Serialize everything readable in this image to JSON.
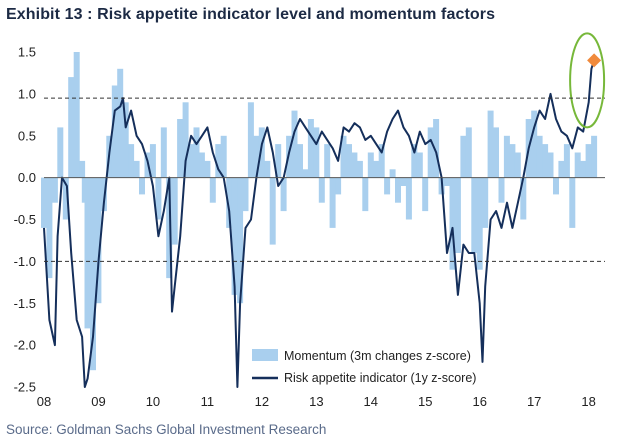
{
  "header": {
    "title": "Exhibit 13 : Risk appetite indicator level and momentum factors"
  },
  "footer": {
    "source": "Source: Goldman Sachs Global Investment Research"
  },
  "chart_data": {
    "type": "line",
    "title": "Exhibit 13 : Risk appetite indicator level and momentum factors",
    "xlabel": "",
    "ylabel": "",
    "x_range": [
      2008.0,
      2018.3
    ],
    "ylim": [
      -2.5,
      1.5
    ],
    "x_tick_labels": [
      "08",
      "09",
      "10",
      "11",
      "12",
      "13",
      "14",
      "15",
      "16",
      "17",
      "18"
    ],
    "y_tick_values": [
      1.5,
      1.0,
      0.5,
      0.0,
      -0.5,
      -1.0,
      -1.5,
      -2.0,
      -2.5
    ],
    "y_tick_labels": [
      "1.5",
      "1.0",
      "0.5",
      "0.0",
      "-0.5",
      "-1.0",
      "-1.5",
      "-2.0",
      "-2.5"
    ],
    "reference_lines": [
      0.95,
      -1.0
    ],
    "colors": {
      "momentum": "#a9cfee",
      "risk": "#152f5b",
      "marker": "#f08a3c",
      "ellipse": "#77b83a",
      "ref": "#333333"
    },
    "series": [
      {
        "name": "Momentum (3m changes z-score)",
        "kind": "area",
        "x": [
          2008.0,
          2008.1,
          2008.2,
          2008.3,
          2008.4,
          2008.5,
          2008.6,
          2008.7,
          2008.75,
          2008.8,
          2008.9,
          2009.0,
          2009.1,
          2009.2,
          2009.3,
          2009.4,
          2009.5,
          2009.6,
          2009.7,
          2009.8,
          2009.9,
          2010.0,
          2010.1,
          2010.2,
          2010.3,
          2010.4,
          2010.5,
          2010.6,
          2010.7,
          2010.8,
          2010.9,
          2011.0,
          2011.1,
          2011.2,
          2011.3,
          2011.4,
          2011.5,
          2011.6,
          2011.7,
          2011.8,
          2011.9,
          2012.0,
          2012.1,
          2012.2,
          2012.3,
          2012.4,
          2012.5,
          2012.6,
          2012.7,
          2012.8,
          2012.9,
          2013.0,
          2013.1,
          2013.2,
          2013.3,
          2013.4,
          2013.5,
          2013.6,
          2013.7,
          2013.8,
          2013.9,
          2014.0,
          2014.1,
          2014.2,
          2014.3,
          2014.4,
          2014.5,
          2014.6,
          2014.7,
          2014.8,
          2014.9,
          2015.0,
          2015.1,
          2015.2,
          2015.3,
          2015.4,
          2015.5,
          2015.6,
          2015.7,
          2015.8,
          2015.9,
          2016.0,
          2016.1,
          2016.2,
          2016.3,
          2016.4,
          2016.5,
          2016.6,
          2016.7,
          2016.8,
          2016.9,
          2017.0,
          2017.1,
          2017.2,
          2017.3,
          2017.4,
          2017.5,
          2017.6,
          2017.7,
          2017.8,
          2017.9,
          2018.0,
          2018.1
        ],
        "values": [
          -0.6,
          -1.2,
          -0.3,
          0.6,
          -0.5,
          1.2,
          1.5,
          0.2,
          -0.3,
          -1.8,
          -2.3,
          -1.5,
          -0.4,
          0.5,
          1.1,
          1.3,
          0.9,
          0.4,
          0.2,
          -0.2,
          0.3,
          0.4,
          -0.5,
          0.6,
          -1.2,
          -0.8,
          0.7,
          0.9,
          0.4,
          0.6,
          0.3,
          0.2,
          -0.3,
          0.4,
          0.5,
          -0.6,
          -1.4,
          -1.5,
          -0.4,
          0.9,
          0.5,
          0.6,
          0.2,
          -0.8,
          0.4,
          -0.4,
          0.5,
          0.8,
          0.4,
          0.1,
          0.7,
          0.6,
          -0.3,
          0.4,
          -0.6,
          -0.2,
          0.5,
          0.4,
          0.3,
          0.2,
          -0.4,
          0.3,
          0.2,
          0.4,
          -0.2,
          0.1,
          -0.3,
          -0.1,
          -0.5,
          0.4,
          0.3,
          -0.4,
          0.6,
          0.7,
          -0.2,
          -0.1,
          -1.1,
          -0.9,
          0.5,
          0.6,
          -0.9,
          -1.1,
          -0.6,
          0.8,
          0.6,
          -0.3,
          0.5,
          0.4,
          0.3,
          -0.5,
          0.7,
          0.8,
          0.5,
          0.4,
          0.3,
          -0.2,
          0.2,
          0.4,
          -0.6,
          0.3,
          0.2,
          0.4,
          0.5
        ]
      },
      {
        "name": "Risk appetite indicator (1y z-score)",
        "kind": "line",
        "x": [
          2008.0,
          2008.1,
          2008.2,
          2008.25,
          2008.33,
          2008.42,
          2008.5,
          2008.6,
          2008.7,
          2008.75,
          2008.8,
          2008.9,
          2009.0,
          2009.1,
          2009.2,
          2009.3,
          2009.4,
          2009.45,
          2009.5,
          2009.6,
          2009.7,
          2009.8,
          2009.9,
          2010.0,
          2010.1,
          2010.2,
          2010.3,
          2010.35,
          2010.4,
          2010.5,
          2010.6,
          2010.7,
          2010.8,
          2010.9,
          2011.0,
          2011.1,
          2011.2,
          2011.3,
          2011.4,
          2011.5,
          2011.55,
          2011.6,
          2011.7,
          2011.8,
          2011.9,
          2012.0,
          2012.1,
          2012.2,
          2012.3,
          2012.4,
          2012.5,
          2012.6,
          2012.7,
          2012.8,
          2012.9,
          2013.0,
          2013.1,
          2013.2,
          2013.3,
          2013.4,
          2013.5,
          2013.6,
          2013.7,
          2013.8,
          2013.9,
          2014.0,
          2014.1,
          2014.2,
          2014.3,
          2014.4,
          2014.5,
          2014.6,
          2014.7,
          2014.8,
          2014.9,
          2015.0,
          2015.1,
          2015.2,
          2015.3,
          2015.4,
          2015.5,
          2015.6,
          2015.7,
          2015.8,
          2015.9,
          2016.0,
          2016.05,
          2016.1,
          2016.2,
          2016.3,
          2016.4,
          2016.5,
          2016.6,
          2016.7,
          2016.8,
          2016.9,
          2017.0,
          2017.1,
          2017.2,
          2017.3,
          2017.4,
          2017.5,
          2017.6,
          2017.7,
          2017.8,
          2017.9,
          2018.0,
          2018.05,
          2018.1
        ],
        "values": [
          -0.6,
          -1.7,
          -2.0,
          -0.7,
          0.0,
          -0.1,
          -0.9,
          -1.7,
          -1.9,
          -2.5,
          -2.4,
          -1.9,
          -1.0,
          -0.3,
          0.3,
          0.8,
          0.85,
          0.95,
          0.6,
          0.8,
          0.5,
          0.4,
          0.2,
          -0.1,
          -0.7,
          -0.4,
          0.0,
          -1.6,
          -1.3,
          -0.7,
          0.2,
          0.5,
          0.4,
          0.5,
          0.6,
          0.3,
          0.1,
          0.0,
          -0.4,
          -1.3,
          -2.5,
          -1.5,
          -0.6,
          -0.5,
          0.0,
          0.4,
          0.6,
          0.3,
          -0.1,
          0.0,
          0.3,
          0.55,
          0.7,
          0.6,
          0.5,
          0.4,
          0.55,
          0.45,
          0.35,
          0.2,
          0.6,
          0.55,
          0.65,
          0.6,
          0.45,
          0.5,
          0.4,
          0.3,
          0.55,
          0.7,
          0.8,
          0.6,
          0.5,
          0.3,
          0.55,
          0.4,
          0.45,
          0.3,
          0.0,
          -0.9,
          -0.6,
          -1.4,
          -0.8,
          -0.9,
          -0.9,
          -1.5,
          -2.2,
          -1.3,
          -0.5,
          -0.4,
          -0.6,
          -0.3,
          -0.6,
          -0.3,
          0.0,
          0.35,
          0.6,
          0.8,
          0.7,
          1.0,
          0.7,
          0.55,
          0.5,
          0.35,
          0.6,
          0.55,
          0.9,
          1.3,
          1.4
        ]
      }
    ],
    "highlight_point": {
      "x": 2018.1,
      "y": 1.4,
      "shape": "diamond"
    },
    "legend": {
      "position": "bottom-right",
      "items": [
        "Momentum (3m changes z-score)",
        "Risk appetite indicator (1y z-score)"
      ]
    }
  }
}
